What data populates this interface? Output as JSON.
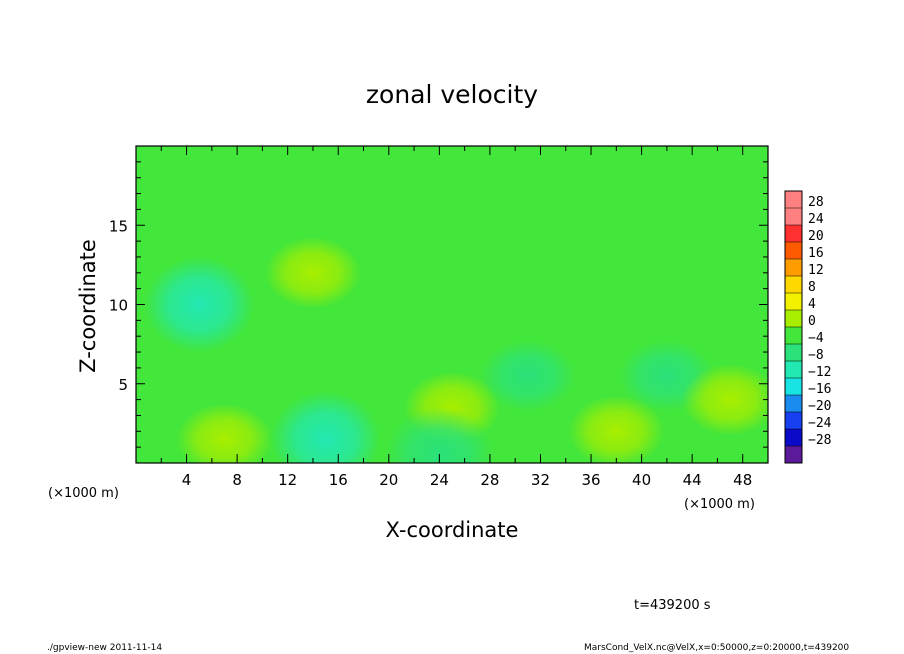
{
  "chart_data": {
    "type": "heatmap",
    "title": "zonal velocity",
    "xlabel": "X-coordinate",
    "ylabel": "Z-coordinate",
    "x_unit_left": "(×1000 m)",
    "x_unit_right": "(×1000 m)",
    "xlim": [
      0,
      50
    ],
    "ylim": [
      0,
      20
    ],
    "x_ticks": [
      4,
      8,
      12,
      16,
      20,
      24,
      28,
      32,
      36,
      40,
      44,
      48
    ],
    "y_ticks": [
      5,
      10,
      15
    ],
    "colorbar": {
      "labels": [
        "28",
        "24",
        "20",
        "16",
        "12",
        "8",
        "4",
        "0",
        "−4",
        "−8",
        "−12",
        "−16",
        "−20",
        "−24",
        "−28"
      ],
      "levels": [
        28,
        24,
        20,
        16,
        12,
        8,
        4,
        0,
        -4,
        -8,
        -12,
        -16,
        -20,
        -24,
        -28
      ],
      "range": [
        -30,
        30
      ]
    },
    "features": [
      {
        "x": 5,
        "z": 10,
        "value": -8
      },
      {
        "x": 14,
        "z": 12,
        "value": 5
      },
      {
        "x": 7,
        "z": 1.5,
        "value": 5
      },
      {
        "x": 15,
        "z": 1.5,
        "value": -7
      },
      {
        "x": 31,
        "z": 5.5,
        "value": -5
      },
      {
        "x": 42,
        "z": 5.5,
        "value": -4
      },
      {
        "x": 25,
        "z": 3.5,
        "value": 3
      },
      {
        "x": 47,
        "z": 4,
        "value": 3
      },
      {
        "x": 38,
        "z": 2,
        "value": 2
      },
      {
        "x": 24,
        "z": 0.5,
        "value": -6
      },
      {
        "x": 45,
        "z": 12,
        "value": -1
      }
    ],
    "annotation": "t=439200 s"
  },
  "footer": {
    "left": "./gpview-new  2011-11-14",
    "right": "MarsCond_VelX.nc@VelX,x=0:50000,z=0:20000,t=439200"
  },
  "colors": {
    "frame": "#000000",
    "background": "#ffffff"
  }
}
